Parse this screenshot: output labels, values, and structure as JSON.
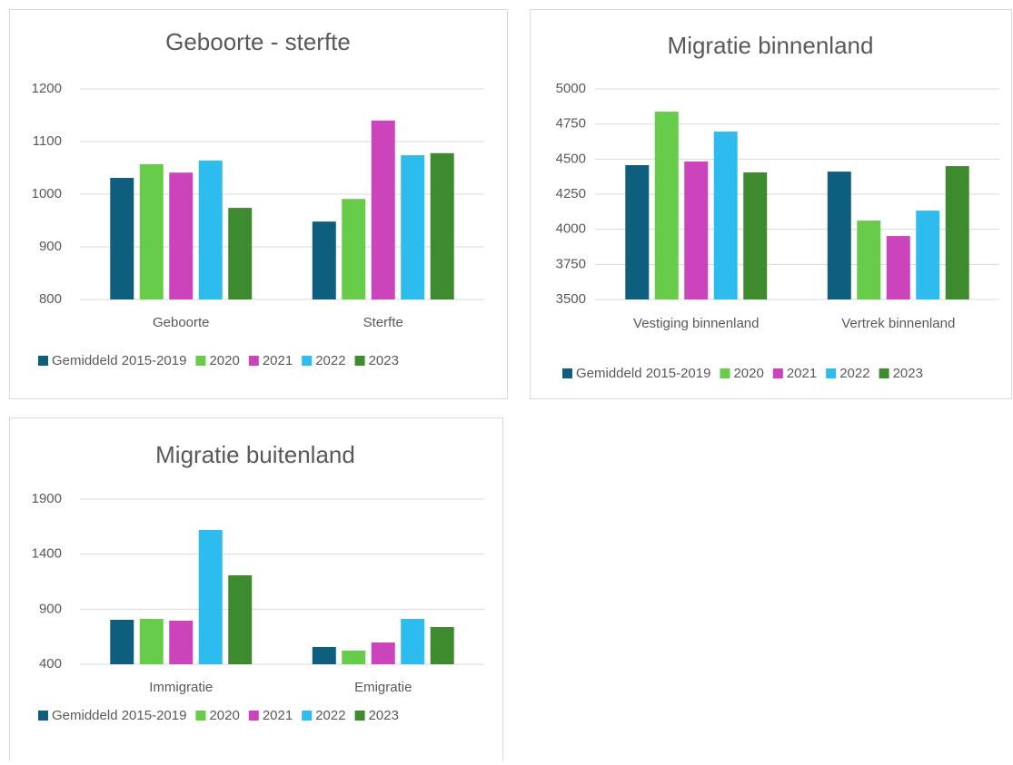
{
  "chart_data": [
    {
      "type": "bar",
      "title": "Geboorte - sterfte",
      "categories": [
        "Geboorte",
        "Sterfte"
      ],
      "series": [
        {
          "name": "Gemiddeld 2015-2019",
          "color": "#0e5f7e",
          "values": [
            1031,
            948
          ]
        },
        {
          "name": "2020",
          "color": "#66cc4a",
          "values": [
            1057,
            991
          ]
        },
        {
          "name": "2021",
          "color": "#cc44bb",
          "values": [
            1041,
            1140
          ]
        },
        {
          "name": "2022",
          "color": "#2ebbee",
          "values": [
            1064,
            1074
          ]
        },
        {
          "name": "2023",
          "color": "#3d8b2e",
          "values": [
            974,
            1078
          ]
        }
      ],
      "ylim": [
        800,
        1200
      ],
      "yticks": [
        800,
        900,
        1000,
        1100,
        1200
      ],
      "grid": true,
      "legend": "bottom"
    },
    {
      "type": "bar",
      "title": "Migratie binnenland",
      "categories": [
        "Vestiging binnenland",
        "Vertrek binnenland"
      ],
      "series": [
        {
          "name": "Gemiddeld 2015-2019",
          "color": "#0e5f7e",
          "values": [
            4457,
            4411
          ]
        },
        {
          "name": "2020",
          "color": "#66cc4a",
          "values": [
            4838,
            4062
          ]
        },
        {
          "name": "2021",
          "color": "#cc44bb",
          "values": [
            4483,
            3952
          ]
        },
        {
          "name": "2022",
          "color": "#2ebbee",
          "values": [
            4696,
            4133
          ]
        },
        {
          "name": "2023",
          "color": "#3d8b2e",
          "values": [
            4405,
            4450
          ]
        }
      ],
      "ylim": [
        3500,
        5000
      ],
      "yticks": [
        3500,
        3750,
        4000,
        4250,
        4500,
        4750,
        5000
      ],
      "grid": true,
      "legend": "bottom"
    },
    {
      "type": "bar",
      "title": "Migratie buitenland",
      "categories": [
        "Immigratie",
        "Emigratie"
      ],
      "series": [
        {
          "name": "Gemiddeld 2015-2019",
          "color": "#0e5f7e",
          "values": [
            804,
            557
          ]
        },
        {
          "name": "2020",
          "color": "#66cc4a",
          "values": [
            812,
            524
          ]
        },
        {
          "name": "2021",
          "color": "#cc44bb",
          "values": [
            796,
            598
          ]
        },
        {
          "name": "2022",
          "color": "#2ebbee",
          "values": [
            1620,
            812
          ]
        },
        {
          "name": "2023",
          "color": "#3d8b2e",
          "values": [
            1208,
            738
          ]
        }
      ],
      "ylim": [
        400,
        1900
      ],
      "yticks": [
        400,
        900,
        1400,
        1900
      ],
      "grid": true,
      "legend": "bottom"
    }
  ]
}
